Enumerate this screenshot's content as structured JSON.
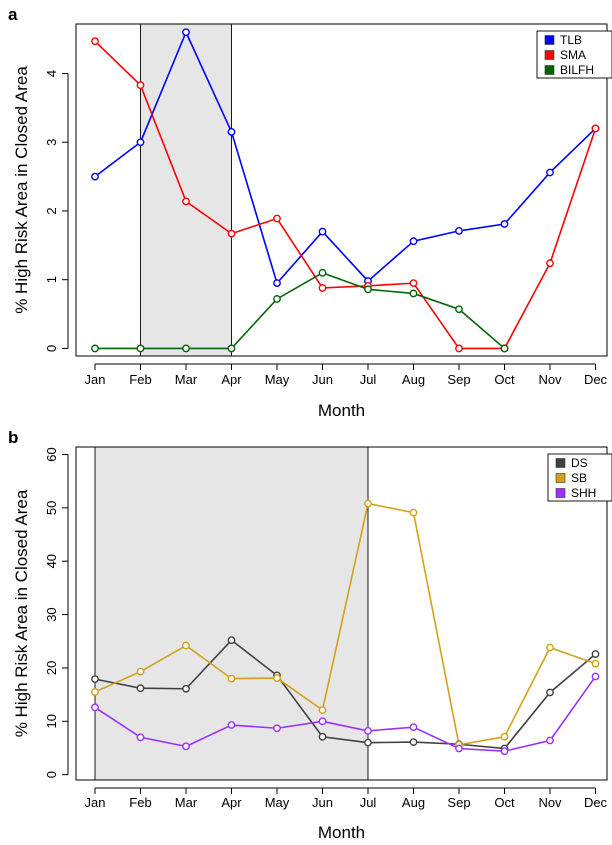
{
  "chart_data": [
    {
      "panel_label": "a",
      "type": "line",
      "categories": [
        "Jan",
        "Feb",
        "Mar",
        "Apr",
        "May",
        "Jun",
        "Jul",
        "Aug",
        "Sep",
        "Oct",
        "Nov",
        "Dec"
      ],
      "xlabel": "Month",
      "ylabel": "% High Risk Area in Closed Area",
      "ylim": [
        0,
        4.6
      ],
      "yticks": [
        0,
        1,
        2,
        3,
        4
      ],
      "shaded_range": [
        "Feb",
        "Apr"
      ],
      "legend_position": "top-right",
      "series": [
        {
          "name": "TLB",
          "color": "#0000ff",
          "values": [
            2.5,
            3.0,
            4.6,
            3.15,
            0.95,
            1.7,
            0.98,
            1.56,
            1.71,
            1.81,
            2.56,
            3.2
          ]
        },
        {
          "name": "SMA",
          "color": "#ff0000",
          "values": [
            4.47,
            3.83,
            2.14,
            1.67,
            1.89,
            0.88,
            0.91,
            0.95,
            0.0,
            0.0,
            1.24,
            3.2
          ]
        },
        {
          "name": "BILFH",
          "color": "#006400",
          "values": [
            0.0,
            0.0,
            0.0,
            0.0,
            0.72,
            1.1,
            0.86,
            0.8,
            0.57,
            0.0,
            null,
            null
          ]
        }
      ]
    },
    {
      "panel_label": "b",
      "type": "line",
      "categories": [
        "Jan",
        "Feb",
        "Mar",
        "Apr",
        "May",
        "Jun",
        "Jul",
        "Aug",
        "Sep",
        "Oct",
        "Nov",
        "Dec"
      ],
      "xlabel": "Month",
      "ylabel": "% High Risk Area in Closed Area",
      "ylim": [
        0,
        61
      ],
      "yticks": [
        0,
        10,
        20,
        30,
        40,
        50,
        60
      ],
      "shaded_range": [
        "Jan",
        "Jul"
      ],
      "legend_position": "top-right",
      "series": [
        {
          "name": "DS",
          "color": "#404040",
          "values": [
            17.9,
            16.2,
            16.1,
            25.2,
            18.6,
            7.1,
            6.0,
            6.1,
            5.7,
            4.9,
            15.4,
            22.6
          ]
        },
        {
          "name": "SB",
          "color": "#d4a017",
          "values": [
            15.5,
            19.3,
            24.2,
            18.0,
            18.1,
            12.1,
            50.8,
            49.1,
            5.6,
            7.1,
            23.8,
            20.8
          ]
        },
        {
          "name": "SHH",
          "color": "#9b30ff",
          "values": [
            12.6,
            7.0,
            5.3,
            9.3,
            8.7,
            10.0,
            8.2,
            8.9,
            4.9,
            4.4,
            6.4,
            18.4
          ]
        }
      ]
    }
  ]
}
